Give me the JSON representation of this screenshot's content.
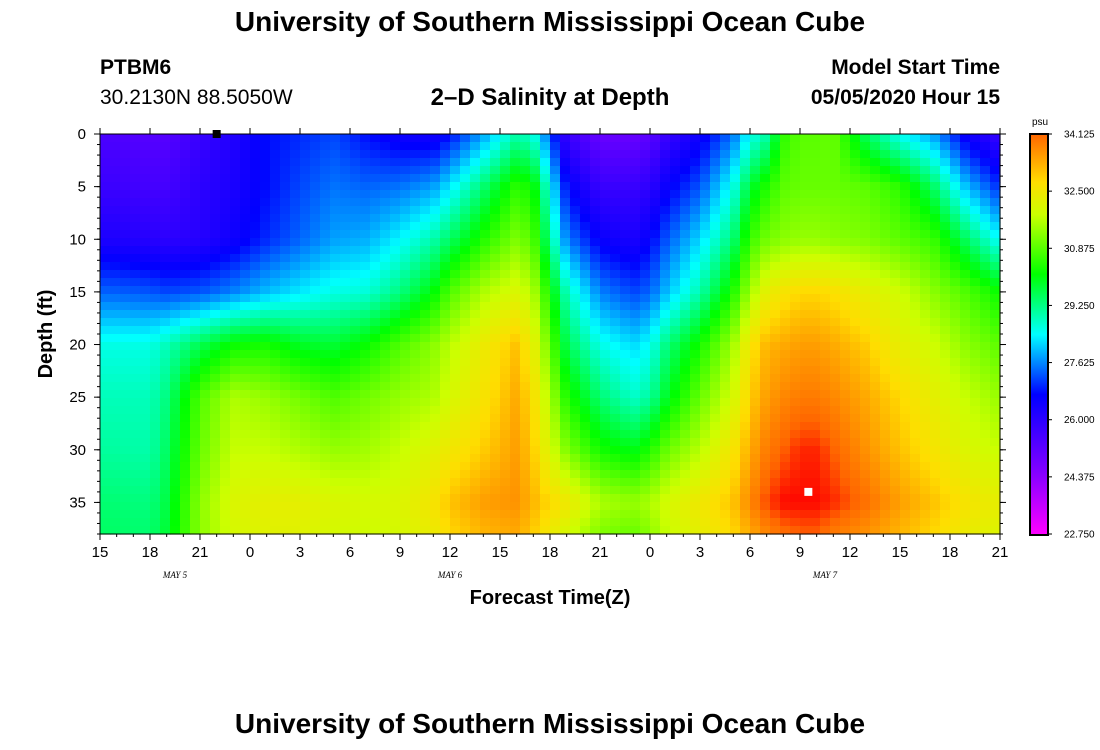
{
  "header": {
    "title": "University of Southern Mississippi Ocean Cube",
    "station_id": "PTBM6",
    "station_coords": "30.2130N 88.5050W",
    "chart_title": "2–D Salinity at Depth",
    "model_label": "Model Start Time",
    "model_time": "05/05/2020 Hour 15"
  },
  "footer": {
    "title": "University of Southern Mississippi Ocean Cube"
  },
  "chart_data": {
    "type": "heatmap",
    "title": "2–D Salinity at Depth",
    "xlabel": "Forecast Time(Z)",
    "ylabel": "Depth (ft)",
    "x_tick_labels": [
      "15",
      "18",
      "21",
      "0",
      "3",
      "6",
      "9",
      "12",
      "15",
      "18",
      "21",
      "0",
      "3",
      "6",
      "9",
      "12",
      "15",
      "18",
      "21"
    ],
    "x_date_labels": [
      {
        "label": "MAY 5",
        "hour_offset": 4.5
      },
      {
        "label": "MAY 6",
        "hour_offset": 21
      },
      {
        "label": "MAY 7",
        "hour_offset": 43.5
      }
    ],
    "x_range_hours": [
      0,
      54
    ],
    "y_ticks": [
      0,
      5,
      10,
      15,
      20,
      25,
      30,
      35
    ],
    "y_range_ft": [
      0,
      38
    ],
    "colorbar": {
      "units": "psu",
      "min": 22.75,
      "max": 34.125,
      "tick_labels": [
        "34.125",
        "32.500",
        "30.875",
        "29.250",
        "27.625",
        "26.000",
        "24.375",
        "22.750"
      ]
    },
    "markers": [
      {
        "name": "min-marker",
        "hour": 7,
        "depth_ft": 0,
        "color": "#000000"
      },
      {
        "name": "max-marker",
        "hour": 42.5,
        "depth_ft": 34,
        "color": "#ffffff"
      }
    ],
    "salinity_hours": [
      0,
      3,
      4,
      6,
      8,
      10,
      12,
      14,
      16,
      18,
      20,
      21,
      23,
      25,
      26,
      28,
      30,
      32,
      33,
      34,
      36,
      38,
      39,
      40,
      41,
      42,
      43,
      44,
      46,
      48,
      50,
      52,
      54
    ],
    "salinity_depths_ft": [
      0,
      5,
      10,
      15,
      20,
      25,
      30,
      35,
      38
    ],
    "salinity_psu": [
      [
        25.5,
        25.3,
        25.3,
        25.8,
        26.2,
        26.8,
        27.0,
        27.2,
        26.8,
        26.5,
        26.4,
        26.8,
        27.8,
        29.0,
        28.7,
        25.8,
        25.0,
        25.0,
        25.2,
        25.8,
        26.5,
        27.5,
        28.5,
        29.0,
        30.5,
        30.9,
        30.9,
        31.0,
        29.5,
        28.5,
        27.8,
        26.5,
        25.8
      ],
      [
        25.8,
        25.6,
        25.6,
        26.0,
        26.3,
        26.8,
        27.2,
        27.5,
        27.4,
        27.5,
        27.8,
        28.3,
        29.4,
        30.5,
        30.2,
        26.8,
        25.8,
        25.8,
        26.0,
        26.6,
        27.3,
        28.6,
        29.8,
        30.4,
        30.9,
        31.0,
        31.0,
        31.0,
        30.9,
        30.5,
        29.5,
        28.0,
        27.0
      ],
      [
        26.3,
        26.1,
        26.0,
        26.1,
        26.5,
        27.0,
        27.4,
        27.8,
        27.9,
        28.4,
        29.0,
        29.5,
        30.4,
        31.2,
        30.8,
        27.6,
        26.6,
        26.3,
        26.7,
        27.3,
        28.2,
        29.4,
        30.6,
        31.1,
        31.3,
        31.4,
        31.4,
        31.3,
        31.2,
        30.9,
        30.6,
        29.5,
        28.4
      ],
      [
        27.4,
        27.3,
        27.2,
        27.3,
        27.6,
        28.0,
        28.3,
        28.6,
        28.7,
        29.3,
        30.1,
        30.8,
        31.6,
        32.1,
        31.6,
        28.9,
        27.6,
        27.2,
        27.4,
        28.0,
        29.0,
        30.4,
        31.5,
        32.3,
        32.6,
        32.8,
        32.8,
        32.7,
        32.3,
        31.9,
        31.3,
        30.8,
        30.2
      ],
      [
        28.6,
        28.6,
        28.9,
        29.6,
        30.2,
        30.3,
        29.9,
        29.8,
        30.2,
        30.8,
        31.3,
        31.7,
        32.4,
        33.0,
        32.3,
        29.6,
        28.6,
        28.2,
        28.5,
        29.3,
        30.3,
        31.5,
        32.6,
        33.1,
        33.2,
        33.3,
        33.3,
        33.2,
        32.9,
        32.3,
        31.9,
        31.3,
        30.9
      ],
      [
        28.9,
        28.9,
        29.3,
        30.8,
        31.6,
        31.4,
        31.1,
        30.8,
        31.1,
        31.4,
        31.6,
        32.0,
        32.6,
        33.2,
        32.7,
        30.4,
        29.4,
        28.8,
        29.1,
        29.9,
        31.0,
        32.0,
        32.9,
        33.3,
        33.5,
        33.6,
        33.6,
        33.5,
        33.2,
        32.8,
        32.3,
        31.8,
        31.4
      ],
      [
        29.1,
        29.0,
        29.5,
        31.0,
        31.8,
        31.8,
        31.6,
        31.4,
        31.5,
        31.8,
        32.2,
        32.5,
        32.9,
        33.3,
        32.9,
        31.2,
        30.3,
        30.0,
        30.4,
        31.0,
        31.7,
        32.6,
        33.2,
        33.6,
        33.8,
        34.0,
        34.0,
        33.8,
        33.4,
        33.0,
        32.6,
        32.1,
        31.8
      ],
      [
        29.4,
        29.3,
        29.7,
        31.3,
        32.1,
        32.3,
        32.3,
        32.1,
        32.0,
        32.1,
        32.6,
        33.0,
        33.3,
        33.4,
        33.1,
        32.5,
        31.6,
        31.4,
        31.6,
        32.0,
        32.5,
        33.0,
        33.5,
        33.9,
        34.1,
        34.1,
        34.1,
        34.0,
        33.7,
        33.3,
        33.0,
        32.6,
        32.3
      ],
      [
        29.5,
        29.4,
        29.8,
        31.3,
        32.0,
        32.2,
        32.2,
        32.0,
        31.9,
        32.0,
        32.4,
        32.8,
        33.1,
        33.2,
        32.9,
        32.0,
        31.2,
        31.0,
        31.3,
        31.8,
        32.3,
        32.8,
        33.2,
        33.5,
        33.7,
        33.8,
        33.8,
        33.6,
        33.4,
        33.1,
        32.8,
        32.4,
        32.1
      ]
    ]
  }
}
